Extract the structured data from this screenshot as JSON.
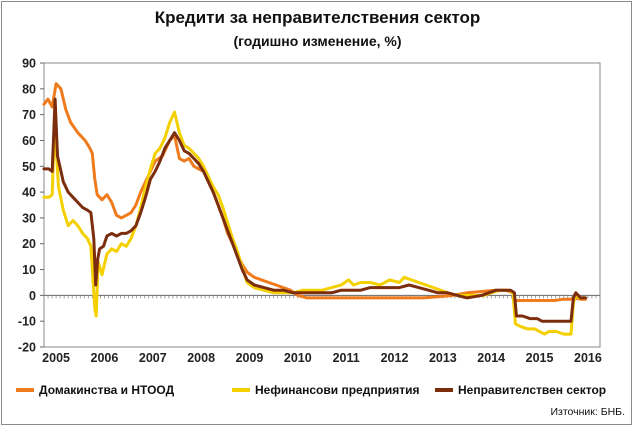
{
  "chart_data": {
    "type": "line",
    "title": "Кредити за неправителствения сектор",
    "subtitle": "(годишно изменение, %)",
    "source": "Източник: БНБ.",
    "ylim": [
      -20,
      90
    ],
    "yticks": [
      -20,
      -10,
      0,
      10,
      20,
      30,
      40,
      50,
      60,
      70,
      80,
      90
    ],
    "xlim": [
      2004.75,
      2016.25
    ],
    "xtick_labels": [
      {
        "x": 2005,
        "label": "2005"
      },
      {
        "x": 2006,
        "label": "2006"
      },
      {
        "x": 2007,
        "label": "2007"
      },
      {
        "x": 2008,
        "label": "2008"
      },
      {
        "x": 2009,
        "label": "2009"
      },
      {
        "x": 2010,
        "label": "2010"
      },
      {
        "x": 2011,
        "label": "2011"
      },
      {
        "x": 2012,
        "label": "2012"
      },
      {
        "x": 2013,
        "label": "2013"
      },
      {
        "x": 2014,
        "label": "2014"
      },
      {
        "x": 2015,
        "label": "2015"
      },
      {
        "x": 2016,
        "label": "2016"
      }
    ],
    "series": [
      {
        "name": "Домакинства и НТООД",
        "color": "#f07b1d",
        "points": [
          [
            2004.75,
            74
          ],
          [
            2004.83,
            76
          ],
          [
            2004.92,
            73
          ],
          [
            2005.0,
            82
          ],
          [
            2005.1,
            80
          ],
          [
            2005.2,
            72
          ],
          [
            2005.3,
            67
          ],
          [
            2005.45,
            63
          ],
          [
            2005.6,
            60
          ],
          [
            2005.7,
            57
          ],
          [
            2005.75,
            55
          ],
          [
            2005.8,
            45
          ],
          [
            2005.85,
            39
          ],
          [
            2005.95,
            37
          ],
          [
            2006.05,
            39
          ],
          [
            2006.15,
            36
          ],
          [
            2006.25,
            31
          ],
          [
            2006.35,
            30
          ],
          [
            2006.45,
            31
          ],
          [
            2006.55,
            32
          ],
          [
            2006.65,
            35
          ],
          [
            2006.75,
            40
          ],
          [
            2006.85,
            44
          ],
          [
            2006.95,
            48
          ],
          [
            2007.05,
            52
          ],
          [
            2007.2,
            54
          ],
          [
            2007.35,
            60
          ],
          [
            2007.45,
            62
          ],
          [
            2007.55,
            53
          ],
          [
            2007.65,
            52
          ],
          [
            2007.75,
            53
          ],
          [
            2007.85,
            50
          ],
          [
            2007.95,
            49
          ],
          [
            2008.05,
            48
          ],
          [
            2008.15,
            44
          ],
          [
            2008.25,
            40
          ],
          [
            2008.35,
            35
          ],
          [
            2008.45,
            30
          ],
          [
            2008.55,
            24
          ],
          [
            2008.65,
            20
          ],
          [
            2008.75,
            16
          ],
          [
            2008.85,
            12
          ],
          [
            2008.95,
            9
          ],
          [
            2009.1,
            7
          ],
          [
            2009.25,
            6
          ],
          [
            2009.4,
            5
          ],
          [
            2009.55,
            4
          ],
          [
            2009.7,
            3
          ],
          [
            2009.85,
            2
          ],
          [
            2010.0,
            0
          ],
          [
            2010.2,
            -1
          ],
          [
            2010.5,
            -1
          ],
          [
            2010.8,
            -1
          ],
          [
            2011.1,
            -1
          ],
          [
            2011.4,
            -1
          ],
          [
            2011.7,
            -1
          ],
          [
            2012.0,
            -1
          ],
          [
            2012.3,
            -1
          ],
          [
            2012.6,
            -1
          ],
          [
            2012.9,
            -0.5
          ],
          [
            2013.2,
            0
          ],
          [
            2013.5,
            1
          ],
          [
            2013.8,
            1.5
          ],
          [
            2014.1,
            2
          ],
          [
            2014.3,
            2
          ],
          [
            2014.45,
            1
          ],
          [
            2014.5,
            -2
          ],
          [
            2014.7,
            -2
          ],
          [
            2014.9,
            -2
          ],
          [
            2015.1,
            -2
          ],
          [
            2015.3,
            -2
          ],
          [
            2015.5,
            -1.5
          ],
          [
            2015.65,
            -1.5
          ],
          [
            2015.7,
            -1
          ],
          [
            2015.85,
            -1.5
          ],
          [
            2015.95,
            -1.5
          ]
        ]
      },
      {
        "name": "Нефинансови предприятия",
        "color": "#f5d000",
        "points": [
          [
            2004.75,
            38
          ],
          [
            2004.85,
            38
          ],
          [
            2004.92,
            39
          ],
          [
            2004.97,
            67
          ],
          [
            2005.05,
            42
          ],
          [
            2005.15,
            33
          ],
          [
            2005.25,
            27
          ],
          [
            2005.35,
            29
          ],
          [
            2005.45,
            27
          ],
          [
            2005.55,
            24
          ],
          [
            2005.65,
            22
          ],
          [
            2005.72,
            19
          ],
          [
            2005.8,
            -5
          ],
          [
            2005.83,
            -8
          ],
          [
            2005.87,
            13
          ],
          [
            2005.95,
            8
          ],
          [
            2006.05,
            16
          ],
          [
            2006.15,
            18
          ],
          [
            2006.25,
            17
          ],
          [
            2006.35,
            20
          ],
          [
            2006.45,
            19
          ],
          [
            2006.55,
            22
          ],
          [
            2006.65,
            27
          ],
          [
            2006.75,
            34
          ],
          [
            2006.85,
            42
          ],
          [
            2006.95,
            49
          ],
          [
            2007.05,
            55
          ],
          [
            2007.15,
            57
          ],
          [
            2007.25,
            61
          ],
          [
            2007.35,
            67
          ],
          [
            2007.45,
            71
          ],
          [
            2007.55,
            63
          ],
          [
            2007.65,
            58
          ],
          [
            2007.75,
            57
          ],
          [
            2007.85,
            55
          ],
          [
            2007.95,
            53
          ],
          [
            2008.05,
            50
          ],
          [
            2008.15,
            46
          ],
          [
            2008.25,
            42
          ],
          [
            2008.35,
            39
          ],
          [
            2008.45,
            34
          ],
          [
            2008.55,
            28
          ],
          [
            2008.65,
            22
          ],
          [
            2008.75,
            17
          ],
          [
            2008.85,
            11
          ],
          [
            2008.95,
            5
          ],
          [
            2009.1,
            3
          ],
          [
            2009.3,
            2
          ],
          [
            2009.5,
            1
          ],
          [
            2009.7,
            1
          ],
          [
            2009.9,
            1
          ],
          [
            2010.1,
            2
          ],
          [
            2010.3,
            2
          ],
          [
            2010.5,
            2
          ],
          [
            2010.7,
            3
          ],
          [
            2010.9,
            4
          ],
          [
            2011.05,
            6
          ],
          [
            2011.15,
            4
          ],
          [
            2011.3,
            5
          ],
          [
            2011.5,
            5
          ],
          [
            2011.7,
            4
          ],
          [
            2011.9,
            6
          ],
          [
            2012.1,
            5
          ],
          [
            2012.2,
            7
          ],
          [
            2012.35,
            6
          ],
          [
            2012.5,
            5
          ],
          [
            2012.65,
            4
          ],
          [
            2012.8,
            3
          ],
          [
            2012.95,
            2
          ],
          [
            2013.1,
            1
          ],
          [
            2013.3,
            0
          ],
          [
            2013.5,
            0
          ],
          [
            2013.7,
            0
          ],
          [
            2013.85,
            0
          ],
          [
            2014.0,
            1
          ],
          [
            2014.2,
            2
          ],
          [
            2014.35,
            2
          ],
          [
            2014.45,
            1
          ],
          [
            2014.5,
            -11
          ],
          [
            2014.6,
            -12
          ],
          [
            2014.75,
            -13
          ],
          [
            2014.9,
            -13
          ],
          [
            2015.0,
            -14
          ],
          [
            2015.1,
            -15
          ],
          [
            2015.2,
            -14
          ],
          [
            2015.35,
            -14
          ],
          [
            2015.5,
            -15
          ],
          [
            2015.65,
            -15
          ],
          [
            2015.7,
            -3
          ],
          [
            2015.75,
            1
          ],
          [
            2015.8,
            -1
          ],
          [
            2015.9,
            -1
          ],
          [
            2015.95,
            -1
          ]
        ]
      },
      {
        "name": "Неправителствен сектор",
        "color": "#7b2d0e",
        "points": [
          [
            2004.75,
            49
          ],
          [
            2004.85,
            49
          ],
          [
            2004.92,
            48
          ],
          [
            2004.98,
            76
          ],
          [
            2005.03,
            54
          ],
          [
            2005.15,
            44
          ],
          [
            2005.25,
            40
          ],
          [
            2005.35,
            38
          ],
          [
            2005.45,
            36
          ],
          [
            2005.55,
            34
          ],
          [
            2005.65,
            33
          ],
          [
            2005.72,
            32
          ],
          [
            2005.78,
            22
          ],
          [
            2005.82,
            4
          ],
          [
            2005.86,
            14
          ],
          [
            2005.9,
            18
          ],
          [
            2005.98,
            19
          ],
          [
            2006.05,
            23
          ],
          [
            2006.15,
            24
          ],
          [
            2006.25,
            23
          ],
          [
            2006.35,
            24
          ],
          [
            2006.45,
            24
          ],
          [
            2006.55,
            25
          ],
          [
            2006.65,
            27
          ],
          [
            2006.75,
            32
          ],
          [
            2006.85,
            38
          ],
          [
            2006.95,
            45
          ],
          [
            2007.05,
            48
          ],
          [
            2007.15,
            52
          ],
          [
            2007.25,
            57
          ],
          [
            2007.35,
            60
          ],
          [
            2007.45,
            63
          ],
          [
            2007.55,
            60
          ],
          [
            2007.65,
            56
          ],
          [
            2007.75,
            55
          ],
          [
            2007.85,
            53
          ],
          [
            2007.95,
            51
          ],
          [
            2008.05,
            48
          ],
          [
            2008.15,
            44
          ],
          [
            2008.25,
            40
          ],
          [
            2008.35,
            35
          ],
          [
            2008.45,
            30
          ],
          [
            2008.55,
            25
          ],
          [
            2008.65,
            20
          ],
          [
            2008.75,
            15
          ],
          [
            2008.85,
            10
          ],
          [
            2008.95,
            6
          ],
          [
            2009.1,
            4
          ],
          [
            2009.3,
            3
          ],
          [
            2009.5,
            2
          ],
          [
            2009.7,
            2
          ],
          [
            2009.9,
            1
          ],
          [
            2010.1,
            1
          ],
          [
            2010.3,
            1
          ],
          [
            2010.5,
            1
          ],
          [
            2010.7,
            1
          ],
          [
            2010.9,
            2
          ],
          [
            2011.1,
            2
          ],
          [
            2011.3,
            2
          ],
          [
            2011.5,
            3
          ],
          [
            2011.7,
            3
          ],
          [
            2011.9,
            3
          ],
          [
            2012.1,
            3
          ],
          [
            2012.3,
            4
          ],
          [
            2012.5,
            3
          ],
          [
            2012.7,
            2
          ],
          [
            2012.9,
            1
          ],
          [
            2013.1,
            1
          ],
          [
            2013.3,
            0
          ],
          [
            2013.5,
            -1
          ],
          [
            2013.65,
            -0.5
          ],
          [
            2013.8,
            0
          ],
          [
            2013.95,
            1
          ],
          [
            2014.1,
            2
          ],
          [
            2014.25,
            2
          ],
          [
            2014.4,
            2
          ],
          [
            2014.48,
            1
          ],
          [
            2014.52,
            -8
          ],
          [
            2014.65,
            -8
          ],
          [
            2014.8,
            -9
          ],
          [
            2014.95,
            -9
          ],
          [
            2015.05,
            -10
          ],
          [
            2015.15,
            -10
          ],
          [
            2015.3,
            -10
          ],
          [
            2015.45,
            -10
          ],
          [
            2015.6,
            -10
          ],
          [
            2015.65,
            -10
          ],
          [
            2015.7,
            -1
          ],
          [
            2015.75,
            1
          ],
          [
            2015.85,
            -1
          ],
          [
            2015.95,
            -1
          ]
        ]
      }
    ]
  }
}
